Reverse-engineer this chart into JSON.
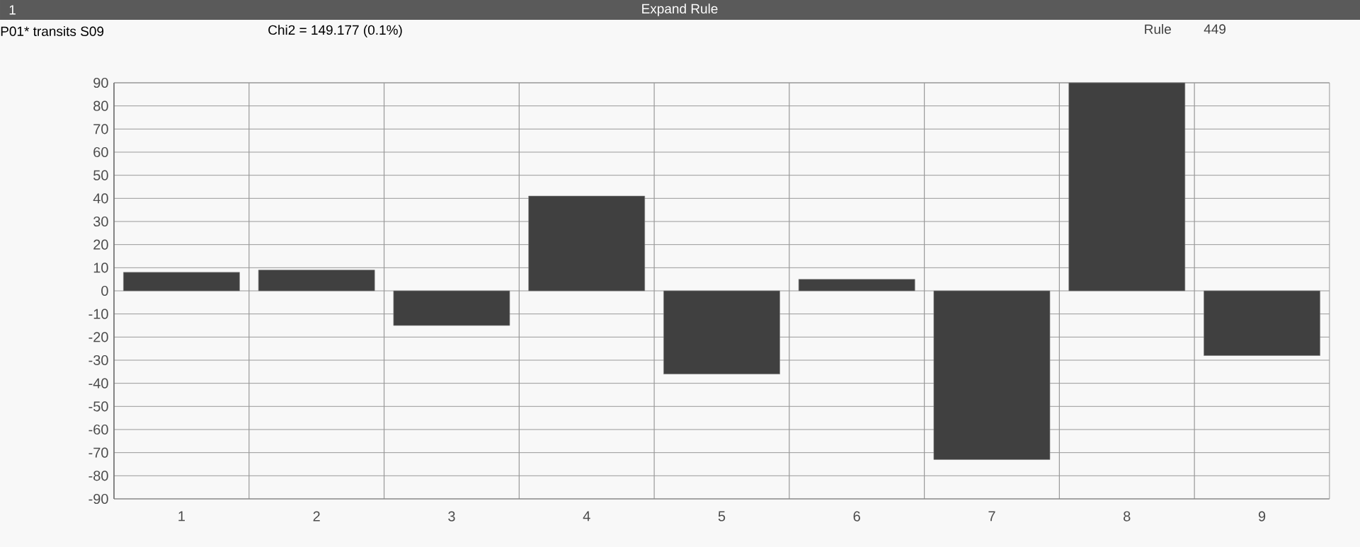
{
  "chart_data": {
    "type": "bar",
    "title": "P01* transits S09",
    "subtitle": "Chi2 = 149.177 (0.1%)",
    "annotations": [
      "1",
      "Expand Rule",
      "Rule",
      "449"
    ],
    "categories": [
      "1",
      "2",
      "3",
      "4",
      "5",
      "6",
      "7",
      "8",
      "9"
    ],
    "values": [
      8,
      9,
      -15,
      41,
      -36,
      5,
      -73,
      90,
      -28
    ],
    "color": "#404040",
    "ylim": [
      -90,
      90
    ],
    "yticks": [
      -90,
      -80,
      -70,
      -60,
      -50,
      -40,
      -30,
      -20,
      -10,
      0,
      10,
      20,
      30,
      40,
      50,
      60,
      70,
      80,
      90
    ],
    "grid": true
  }
}
